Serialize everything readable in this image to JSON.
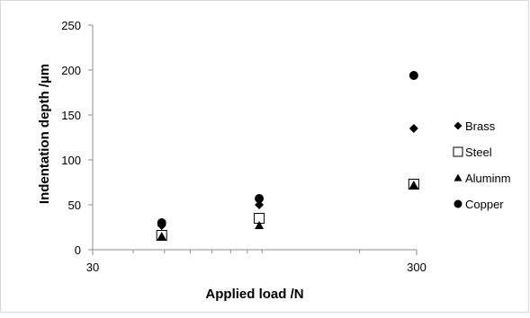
{
  "chart_data": {
    "type": "scatter",
    "xlabel": "Applied load /N",
    "ylabel": "Indentation depth /µm",
    "x_scale": "log",
    "xlim": [
      30,
      300
    ],
    "ylim": [
      0,
      250
    ],
    "x_ticks": [
      {
        "value": 30,
        "label": "30"
      },
      {
        "value": 300,
        "label": "300"
      }
    ],
    "y_ticks": [
      {
        "value": 0,
        "label": "0"
      },
      {
        "value": 50,
        "label": "50"
      },
      {
        "value": 100,
        "label": "100"
      },
      {
        "value": 150,
        "label": "150"
      },
      {
        "value": 200,
        "label": "200"
      },
      {
        "value": 250,
        "label": "250"
      }
    ],
    "grid": false,
    "legend_position": "right",
    "series": [
      {
        "name": "Brass",
        "marker": "diamond",
        "color": "#000000",
        "x": [
          49,
          98,
          294
        ],
        "y": [
          27,
          50,
          135
        ]
      },
      {
        "name": "Steel",
        "marker": "square-open",
        "color": "#000000",
        "x": [
          49,
          98,
          294
        ],
        "y": [
          16,
          35,
          73
        ]
      },
      {
        "name": "Aluminm",
        "marker": "triangle",
        "color": "#000000",
        "x": [
          49,
          98,
          294
        ],
        "y": [
          15,
          27,
          72
        ]
      },
      {
        "name": "Copper",
        "marker": "circle",
        "color": "#000000",
        "x": [
          49,
          98,
          294
        ],
        "y": [
          30,
          57,
          194
        ]
      }
    ]
  }
}
